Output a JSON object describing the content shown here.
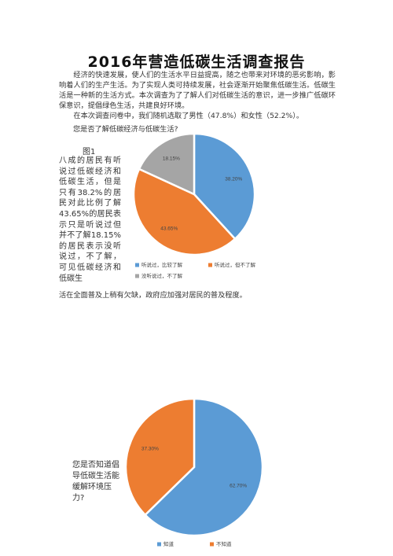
{
  "document": {
    "title": "2016年营造低碳生活调查报告",
    "intro_paragraph": "经济的快速发展，使人们的生活水平日益提高，随之也带来对环境的恶劣影响，影响着人们的生产生活。为了实现人类可持续发展，社会逐渐开始聚焦低碳生活。低碳生活是一种新的生活方式。本次调查为了了解人们对低碳生活的意识，进一步推广低碳环保意识，提倡绿色生活，共建良好环境。",
    "survey_paragraph": "在本次调查问卷中，我们随机选取了男性（47.8%）和女性（52.2%）。",
    "question1": "您是否了解低碳经济与低碳生活?",
    "figure1_label": "图1",
    "figure1_analysis": "八成的居民有听说过低碳经济和低碳生活，但是只有38.2%的居民对此比例了解43.65%的居民表示只是听说过但并不了解18.15%的居民表示没听说过，不了解，可见低碳经济和低碳生",
    "figure1_analysis_cont": "活在全面普及上稍有欠缺，政府应加强对居民的普及程度。",
    "question2": "您是否知道倡导低碳生活能缓解环境压力?"
  },
  "chart_data": [
    {
      "type": "pie",
      "title": "",
      "slices": [
        {
          "label": "听说过，比较了解",
          "value": 38.2,
          "display": "38.20%",
          "color": "#5b9bd5"
        },
        {
          "label": "听说过，但不了解",
          "value": 43.65,
          "display": "43.65%",
          "color": "#ed7d31"
        },
        {
          "label": "没听说过，不了解",
          "value": 18.15,
          "display": "18.15%",
          "color": "#a5a5a5"
        }
      ],
      "legend_position": "bottom"
    },
    {
      "type": "pie",
      "title": "",
      "slices": [
        {
          "label": "知道",
          "value": 62.7,
          "display": "62.70%",
          "color": "#5b9bd5"
        },
        {
          "label": "不知道",
          "value": 37.3,
          "display": "37.30%",
          "color": "#ed7d31"
        }
      ],
      "legend_position": "bottom"
    }
  ]
}
